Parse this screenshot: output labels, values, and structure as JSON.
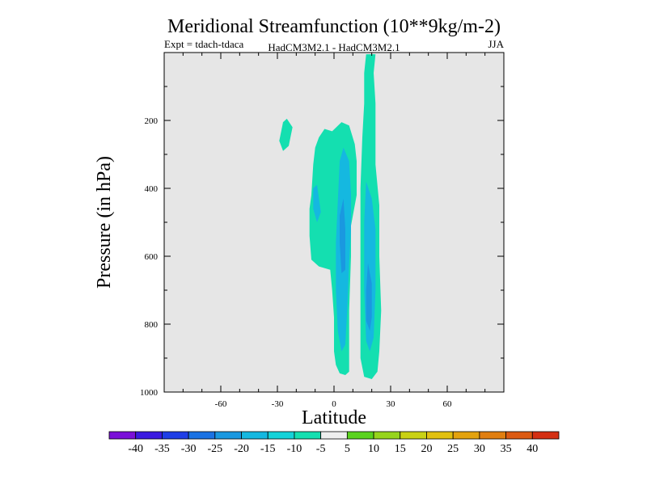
{
  "chart_data": {
    "type": "contour",
    "title": "Meridional Streamfunction (10**9kg/m-2)",
    "subtitle_left": "Expt = tdach-tdaca",
    "subtitle_center": "HadCM3M2.1 - HadCM3M2.1",
    "subtitle_right": "JJA",
    "xlabel": "Latitude",
    "ylabel": "Pressure (in hPa)",
    "xlim": [
      -90,
      90
    ],
    "ylim": [
      1000,
      0
    ],
    "xticks": [
      -60,
      -30,
      0,
      30,
      60
    ],
    "yticks": [
      200,
      400,
      600,
      800,
      1000
    ],
    "background_color": "#e6e6e6",
    "colorbar": {
      "labels": [
        "-40",
        "-35",
        "-30",
        "-25",
        "-20",
        "-15",
        "-10",
        "-5",
        "5",
        "10",
        "15",
        "20",
        "25",
        "30",
        "35",
        "40"
      ],
      "colors": [
        "#7a10d8",
        "#3a1ae0",
        "#1f3ee6",
        "#1b72e3",
        "#1a98e0",
        "#15b8e0",
        "#14d2d8",
        "#14dfb0",
        "#eeeeee",
        "#5ad21e",
        "#96d41c",
        "#c9d114",
        "#e1c010",
        "#e3a20e",
        "#e07e10",
        "#db5a12",
        "#d42f12"
      ]
    },
    "regions": [
      {
        "level": "-10 to -5",
        "color": "#14dfb0",
        "points": [
          [
            -25,
            195
          ],
          [
            -22,
            220
          ],
          [
            -24,
            275
          ],
          [
            -27,
            290
          ],
          [
            -29,
            260
          ],
          [
            -27,
            205
          ]
        ]
      },
      {
        "level": "-10 to -5",
        "color": "#14dfb0",
        "points": [
          [
            -5,
            225
          ],
          [
            -1,
            232
          ],
          [
            4,
            205
          ],
          [
            8,
            215
          ],
          [
            11,
            270
          ],
          [
            12,
            320
          ],
          [
            12,
            420
          ],
          [
            9,
            510
          ],
          [
            9,
            600
          ],
          [
            8,
            760
          ],
          [
            8,
            880
          ],
          [
            8,
            940
          ],
          [
            6,
            950
          ],
          [
            3,
            945
          ],
          [
            1,
            920
          ],
          [
            0,
            880
          ],
          [
            0,
            780
          ],
          [
            -1,
            700
          ],
          [
            -2,
            640
          ],
          [
            -8,
            630
          ],
          [
            -12,
            610
          ],
          [
            -13,
            540
          ],
          [
            -13,
            460
          ],
          [
            -12,
            420
          ],
          [
            -11,
            330
          ],
          [
            -10,
            280
          ],
          [
            -8,
            250
          ]
        ]
      },
      {
        "level": "-10 to -5",
        "color": "#14dfb0",
        "points": [
          [
            17,
            5
          ],
          [
            22,
            5
          ],
          [
            21,
            60
          ],
          [
            22,
            150
          ],
          [
            22,
            250
          ],
          [
            22,
            330
          ],
          [
            24,
            450
          ],
          [
            24,
            600
          ],
          [
            25,
            760
          ],
          [
            24,
            880
          ],
          [
            23,
            940
          ],
          [
            20,
            962
          ],
          [
            16,
            955
          ],
          [
            14,
            900
          ],
          [
            14,
            820
          ],
          [
            14,
            700
          ],
          [
            14,
            560
          ],
          [
            14,
            400
          ],
          [
            15,
            250
          ],
          [
            16,
            150
          ],
          [
            16,
            60
          ]
        ]
      },
      {
        "level": "-15 to -10",
        "color": "#15b8e0",
        "points": [
          [
            -9,
            390
          ],
          [
            -7,
            470
          ],
          [
            -9,
            500
          ],
          [
            -11,
            460
          ],
          [
            -11,
            400
          ]
        ]
      },
      {
        "level": "-15 to -10",
        "color": "#15b8e0",
        "points": [
          [
            5,
            280
          ],
          [
            8,
            320
          ],
          [
            9,
            420
          ],
          [
            9,
            520
          ],
          [
            8,
            620
          ],
          [
            7,
            760
          ],
          [
            6,
            860
          ],
          [
            4,
            880
          ],
          [
            2,
            820
          ],
          [
            1,
            700
          ],
          [
            1,
            560
          ],
          [
            2,
            440
          ],
          [
            3,
            320
          ]
        ]
      },
      {
        "level": "-15 to -10",
        "color": "#15b8e0",
        "points": [
          [
            17,
            380
          ],
          [
            20,
            430
          ],
          [
            22,
            520
          ],
          [
            22,
            700
          ],
          [
            21,
            840
          ],
          [
            19,
            880
          ],
          [
            17,
            850
          ],
          [
            16,
            700
          ],
          [
            16,
            500
          ]
        ]
      },
      {
        "level": "-20 to -15",
        "color": "#1a98e0",
        "points": [
          [
            5,
            430
          ],
          [
            6,
            520
          ],
          [
            6,
            640
          ],
          [
            4,
            650
          ],
          [
            3,
            560
          ],
          [
            3,
            480
          ]
        ]
      },
      {
        "level": "-20 to -15",
        "color": "#1a98e0",
        "points": [
          [
            18,
            620
          ],
          [
            20,
            680
          ],
          [
            20,
            780
          ],
          [
            19,
            820
          ],
          [
            17,
            790
          ],
          [
            17,
            700
          ]
        ]
      }
    ]
  }
}
